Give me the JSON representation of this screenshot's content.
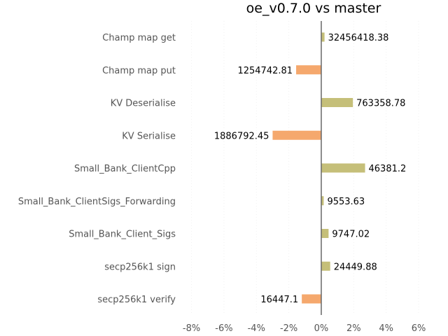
{
  "chart_data": {
    "type": "bar",
    "orientation": "horizontal",
    "title": "oe_v0.7.0 vs master",
    "xlabel": "",
    "ylabel": "",
    "xlim": [
      -8.5,
      6.0
    ],
    "ticks": [
      -8,
      -6,
      -4,
      -2,
      0,
      2,
      4,
      6
    ],
    "tick_labels": [
      "-8%",
      "-6%",
      "-4%",
      "-2%",
      "0%",
      "2%",
      "4%",
      "6%"
    ],
    "grid": true,
    "legend": "none",
    "colors": {
      "positive": "#c5bf79",
      "negative": "#f5a86d",
      "zero_line": "#666666"
    },
    "categories": [
      "Champ map get",
      "Champ map put",
      "KV Deserialise",
      "KV Serialise",
      "Small_Bank_ClientCpp",
      "Small_Bank_ClientSigs_Forwarding",
      "Small_Bank_Client_Sigs",
      "secp256k1 sign",
      "secp256k1 verify"
    ],
    "values": [
      0.2,
      -1.55,
      1.95,
      -3.0,
      2.7,
      0.15,
      0.45,
      0.55,
      -1.2
    ],
    "data_labels": [
      "32456418.38",
      "1254742.81",
      "763358.78",
      "1886792.45",
      "46381.2",
      "9553.63",
      "9747.02",
      "24449.88",
      "16447.1"
    ]
  }
}
